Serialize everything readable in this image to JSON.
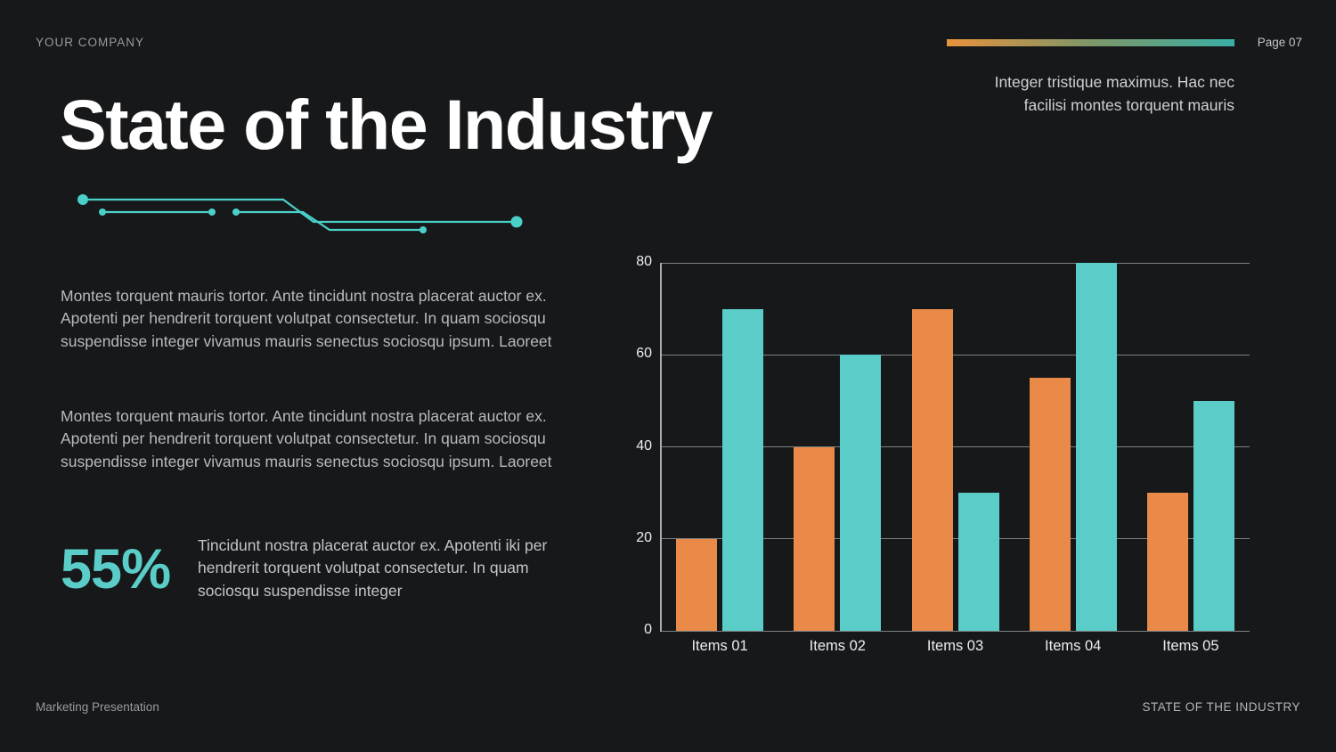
{
  "colors": {
    "background": "#16181a",
    "accent_teal": "#5bcdc8",
    "accent_orange": "#e98a48",
    "gradient_start": "#e8913c",
    "gradient_mid": "#7e9768",
    "gradient_end": "#3aafa6",
    "grid": "#8f9494",
    "title_text": "#ffffff"
  },
  "header": {
    "company": "YOUR COMPANY",
    "page_label": "Page 07",
    "note": [
      "Integer tristique maximus. Hac nec",
      "facilisi montes torquent mauris"
    ]
  },
  "title": "State of the Industry",
  "paragraphs": [
    "Montes torquent mauris tortor. Ante tincidunt nostra placerat auctor ex. Apotenti per hendrerit torquent volutpat consectetur. In quam sociosqu suspendisse integer vivamus mauris senectus sociosqu ipsum. Laoreet",
    "Montes torquent mauris tortor. Ante tincidunt nostra placerat auctor ex. Apotenti per hendrerit torquent volutpat consectetur. In quam sociosqu suspendisse integer vivamus mauris senectus sociosqu ipsum. Laoreet"
  ],
  "stat": {
    "value": "55%",
    "text": "Tincidunt nostra placerat auctor ex. Apotenti iki per hendrerit torquent volutpat consectetur. In quam sociosqu suspendisse integer"
  },
  "footer": {
    "left": "Marketing Presentation",
    "right": "STATE OF THE INDUSTRY"
  },
  "chart_data": {
    "type": "bar",
    "categories": [
      "Items 01",
      "Items 02",
      "Items 03",
      "Items 04",
      "Items 05"
    ],
    "series": [
      {
        "name": "orange",
        "color": "#e98a48",
        "values": [
          20,
          40,
          70,
          55,
          30
        ]
      },
      {
        "name": "teal",
        "color": "#5bcdc8",
        "values": [
          70,
          60,
          30,
          80,
          50
        ]
      }
    ],
    "title": "",
    "xlabel": "",
    "ylabel": "",
    "ylim": [
      0,
      80
    ],
    "yticks": [
      0,
      20,
      40,
      60,
      80
    ],
    "grid": true,
    "legend": "none"
  }
}
